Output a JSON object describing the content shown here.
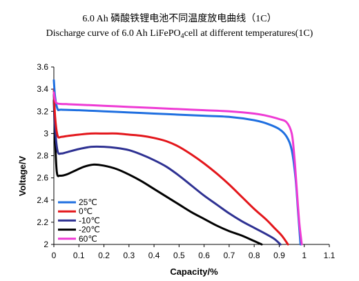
{
  "chart_data": {
    "type": "line",
    "title": "6.0 Ah 磷酸铁锂电池不同温度放电曲线（1C）",
    "subtitle_main": "Discharge curve of 6.0 Ah LiFePO",
    "subtitle_sub": "4",
    "subtitle_rest": "cell at different temperatures(1C)",
    "xlabel": "Capacity/%",
    "ylabel": "Voltage/V",
    "xlim": [
      0,
      1.1
    ],
    "ylim": [
      2,
      3.6
    ],
    "xticks": [
      0,
      0.1,
      0.2,
      0.3,
      0.4,
      0.5,
      0.6,
      0.7,
      0.8,
      0.9,
      1,
      1.1
    ],
    "xtick_labels": [
      "0",
      "0.1",
      "0.2",
      "0.3",
      "0.4",
      "0.5",
      "0.6",
      "0.7",
      "0.8",
      "0.9",
      "1",
      "1.1"
    ],
    "yticks": [
      2,
      2.2,
      2.4,
      2.6,
      2.8,
      3,
      3.2,
      3.4,
      3.6
    ],
    "ytick_labels": [
      "2",
      "2.2",
      "2.4",
      "2.6",
      "2.8",
      "3",
      "3.2",
      "3.4",
      "3.6"
    ],
    "grid": false,
    "legend_position": "bottom-left",
    "series": [
      {
        "name": "25℃",
        "color": "#1f6fe0",
        "points": [
          [
            0,
            3.48
          ],
          [
            0.005,
            3.33
          ],
          [
            0.015,
            3.22
          ],
          [
            0.03,
            3.215
          ],
          [
            0.1,
            3.21
          ],
          [
            0.2,
            3.2
          ],
          [
            0.3,
            3.19
          ],
          [
            0.4,
            3.18
          ],
          [
            0.5,
            3.17
          ],
          [
            0.6,
            3.16
          ],
          [
            0.7,
            3.15
          ],
          [
            0.8,
            3.12
          ],
          [
            0.85,
            3.09
          ],
          [
            0.9,
            3.04
          ],
          [
            0.93,
            2.97
          ],
          [
            0.95,
            2.85
          ],
          [
            0.965,
            2.6
          ],
          [
            0.975,
            2.3
          ],
          [
            0.985,
            2.0
          ]
        ]
      },
      {
        "name": "0℃",
        "color": "#e3161b",
        "points": [
          [
            0,
            3.4
          ],
          [
            0.005,
            3.15
          ],
          [
            0.015,
            2.98
          ],
          [
            0.03,
            2.97
          ],
          [
            0.06,
            2.98
          ],
          [
            0.1,
            2.99
          ],
          [
            0.15,
            3.0
          ],
          [
            0.2,
            3.0
          ],
          [
            0.25,
            3.0
          ],
          [
            0.3,
            2.99
          ],
          [
            0.35,
            2.98
          ],
          [
            0.4,
            2.96
          ],
          [
            0.45,
            2.93
          ],
          [
            0.5,
            2.88
          ],
          [
            0.55,
            2.81
          ],
          [
            0.6,
            2.73
          ],
          [
            0.65,
            2.64
          ],
          [
            0.7,
            2.54
          ],
          [
            0.75,
            2.43
          ],
          [
            0.8,
            2.32
          ],
          [
            0.85,
            2.22
          ],
          [
            0.88,
            2.15
          ],
          [
            0.91,
            2.08
          ],
          [
            0.935,
            2.0
          ]
        ]
      },
      {
        "name": "-10℃",
        "color": "#2e3192",
        "points": [
          [
            0,
            3.35
          ],
          [
            0.005,
            3.05
          ],
          [
            0.015,
            2.84
          ],
          [
            0.03,
            2.82
          ],
          [
            0.05,
            2.83
          ],
          [
            0.1,
            2.86
          ],
          [
            0.15,
            2.88
          ],
          [
            0.2,
            2.88
          ],
          [
            0.25,
            2.87
          ],
          [
            0.3,
            2.85
          ],
          [
            0.35,
            2.81
          ],
          [
            0.4,
            2.76
          ],
          [
            0.45,
            2.7
          ],
          [
            0.5,
            2.62
          ],
          [
            0.55,
            2.53
          ],
          [
            0.6,
            2.44
          ],
          [
            0.65,
            2.36
          ],
          [
            0.7,
            2.28
          ],
          [
            0.75,
            2.21
          ],
          [
            0.8,
            2.15
          ],
          [
            0.85,
            2.09
          ],
          [
            0.88,
            2.05
          ],
          [
            0.905,
            2.0
          ]
        ]
      },
      {
        "name": "-20℃",
        "color": "#000000",
        "points": [
          [
            0,
            3.3
          ],
          [
            0.005,
            2.95
          ],
          [
            0.012,
            2.65
          ],
          [
            0.025,
            2.62
          ],
          [
            0.05,
            2.63
          ],
          [
            0.08,
            2.66
          ],
          [
            0.12,
            2.7
          ],
          [
            0.16,
            2.72
          ],
          [
            0.2,
            2.71
          ],
          [
            0.25,
            2.68
          ],
          [
            0.3,
            2.63
          ],
          [
            0.35,
            2.57
          ],
          [
            0.4,
            2.5
          ],
          [
            0.45,
            2.43
          ],
          [
            0.5,
            2.36
          ],
          [
            0.55,
            2.29
          ],
          [
            0.6,
            2.23
          ],
          [
            0.65,
            2.17
          ],
          [
            0.7,
            2.12
          ],
          [
            0.75,
            2.08
          ],
          [
            0.8,
            2.03
          ],
          [
            0.83,
            2.0
          ]
        ]
      },
      {
        "name": "60℃",
        "color": "#ee3ad4",
        "points": [
          [
            0,
            3.37
          ],
          [
            0.005,
            3.3
          ],
          [
            0.015,
            3.27
          ],
          [
            0.05,
            3.265
          ],
          [
            0.1,
            3.26
          ],
          [
            0.2,
            3.25
          ],
          [
            0.3,
            3.24
          ],
          [
            0.4,
            3.23
          ],
          [
            0.5,
            3.22
          ],
          [
            0.6,
            3.21
          ],
          [
            0.7,
            3.2
          ],
          [
            0.8,
            3.18
          ],
          [
            0.85,
            3.16
          ],
          [
            0.9,
            3.13
          ],
          [
            0.93,
            3.1
          ],
          [
            0.95,
            3.0
          ],
          [
            0.96,
            2.8
          ],
          [
            0.97,
            2.5
          ],
          [
            0.98,
            2.2
          ],
          [
            0.99,
            2.0
          ]
        ]
      }
    ]
  }
}
